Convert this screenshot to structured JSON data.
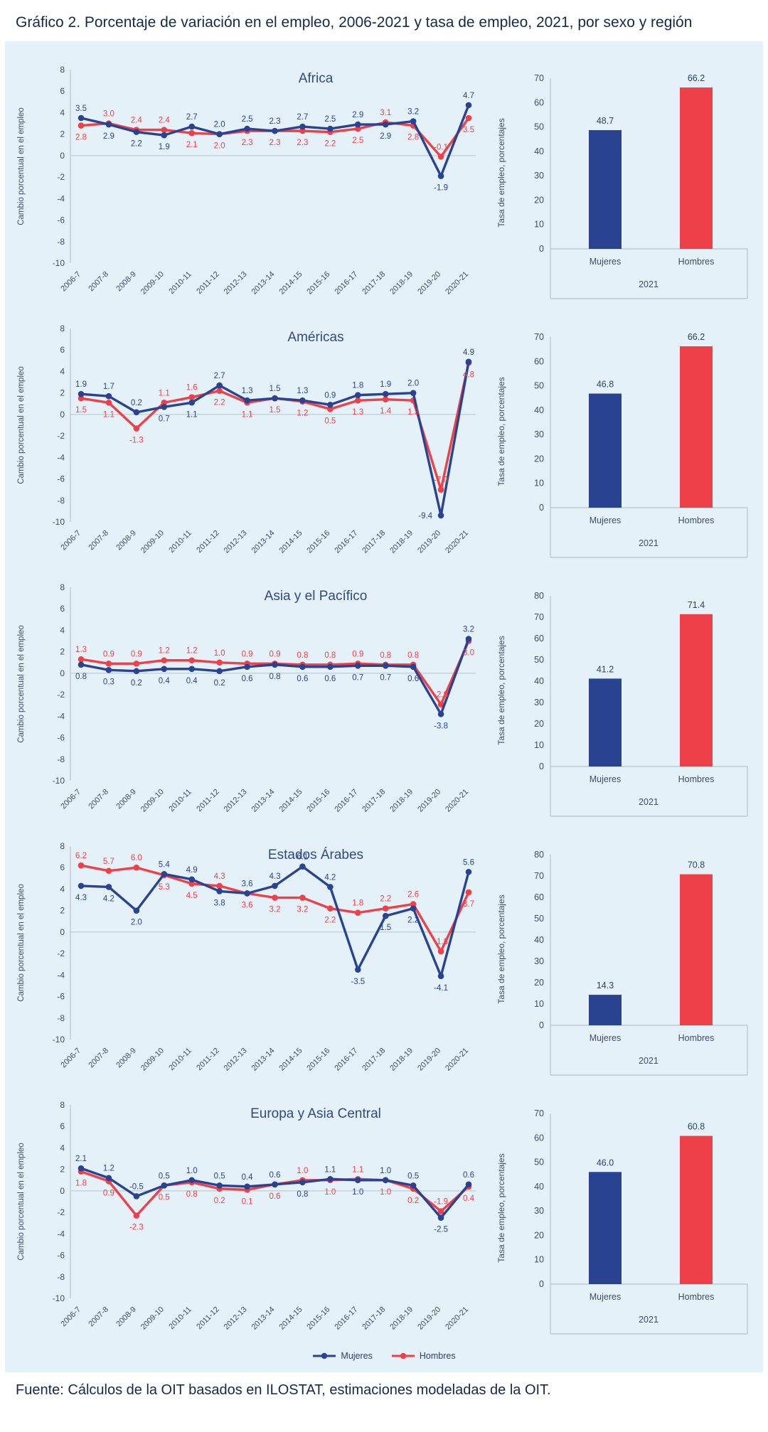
{
  "page": {
    "title": "Gráfico 2. Porcentaje de variación en el empleo, 2006-2021 y tasa de empleo, 2021, por sexo y región",
    "source": "Fuente: Cálculos de la OIT basados en ILOSTAT, estimaciones modeladas de la OIT."
  },
  "colors": {
    "mujeres": "#2a4390",
    "hombres": "#ee4049",
    "panel_background": "#e4f1f8",
    "axis_text": "#3f4d68",
    "grid_line": "#b8c2cc",
    "title_text": "#32497e"
  },
  "legend": {
    "mujeres": "Mujeres",
    "hombres": "Hombres"
  },
  "chart_data": {
    "type": "line+bar multi-panel",
    "line_title_note": "Porcentaje de variación en el empleo, 2006-2021",
    "line_ylabel": "Cambio porcentual en el empleo",
    "line_ylim": [
      -10,
      8
    ],
    "line_yticks": [
      8,
      6,
      4,
      2,
      0,
      -2,
      -4,
      -6,
      -8,
      -10
    ],
    "categories": [
      "2006-7",
      "2007-8",
      "2008-9",
      "2009-10",
      "2010-11",
      "2011-12",
      "2012-13",
      "2013-14",
      "2014-15",
      "2015-16",
      "2016-17",
      "2017-18",
      "2018-19",
      "2019-20",
      "2020-21"
    ],
    "bar_ylabel": "Tasa de empleo, porcentajes",
    "bar_categories": [
      "Mujeres",
      "Hombres"
    ],
    "bar_year": "2021",
    "panels": [
      {
        "region": "Africa",
        "series": [
          {
            "name": "Mujeres",
            "values": [
              3.5,
              2.9,
              2.2,
              1.9,
              2.7,
              2.0,
              2.5,
              2.3,
              2.7,
              2.5,
              2.9,
              2.9,
              3.2,
              -1.9,
              4.7
            ]
          },
          {
            "name": "Hombres",
            "values": [
              2.8,
              3.0,
              2.4,
              2.4,
              2.1,
              2.0,
              2.3,
              2.3,
              2.3,
              2.2,
              2.5,
              3.1,
              2.8,
              -0.1,
              3.5
            ]
          }
        ],
        "bar_values": [
          48.7,
          66.2
        ],
        "bar_ymax": 70
      },
      {
        "region": "Américas",
        "series": [
          {
            "name": "Mujeres",
            "values": [
              1.9,
              1.7,
              0.2,
              0.7,
              1.1,
              2.7,
              1.3,
              1.5,
              1.3,
              0.9,
              1.8,
              1.9,
              2.0,
              -9.4,
              4.9
            ]
          },
          {
            "name": "Hombres",
            "values": [
              1.5,
              1.1,
              -1.3,
              1.1,
              1.6,
              2.2,
              1.1,
              1.5,
              1.2,
              0.5,
              1.3,
              1.4,
              1.3,
              -7.0,
              4.8
            ]
          }
        ],
        "bar_values": [
          46.8,
          66.2
        ],
        "bar_ymax": 70
      },
      {
        "region": "Asia y el Pacífico",
        "series": [
          {
            "name": "Mujeres",
            "values": [
              0.8,
              0.3,
              0.2,
              0.4,
              0.4,
              0.2,
              0.6,
              0.8,
              0.6,
              0.6,
              0.7,
              0.7,
              0.6,
              -3.8,
              3.2
            ]
          },
          {
            "name": "Hombres",
            "values": [
              1.3,
              0.9,
              0.9,
              1.2,
              1.2,
              1.0,
              0.9,
              0.9,
              0.8,
              0.8,
              0.9,
              0.8,
              0.8,
              -2.9,
              3.0
            ]
          }
        ],
        "bar_values": [
          41.2,
          71.4
        ],
        "bar_ymax": 80
      },
      {
        "region": "Estados Árabes",
        "series": [
          {
            "name": "Mujeres",
            "values": [
              4.3,
              4.2,
              2.0,
              5.4,
              4.9,
              3.8,
              3.6,
              4.3,
              6.1,
              4.2,
              -3.5,
              1.5,
              2.2,
              -4.1,
              5.6
            ]
          },
          {
            "name": "Hombres",
            "values": [
              6.2,
              5.7,
              6.0,
              5.3,
              4.5,
              4.3,
              3.6,
              3.2,
              3.2,
              2.2,
              1.8,
              2.2,
              2.6,
              -1.8,
              3.7
            ]
          }
        ],
        "bar_values": [
          14.3,
          70.8
        ],
        "bar_ymax": 80
      },
      {
        "region": "Europa y Asia Central",
        "series": [
          {
            "name": "Mujeres",
            "values": [
              2.1,
              1.2,
              -0.5,
              0.5,
              1.0,
              0.5,
              0.4,
              0.6,
              0.8,
              1.1,
              1.0,
              1.0,
              0.5,
              -2.5,
              0.6
            ]
          },
          {
            "name": "Hombres",
            "values": [
              1.8,
              0.9,
              -2.3,
              0.5,
              0.8,
              0.2,
              0.1,
              0.6,
              1.0,
              1.0,
              1.1,
              1.0,
              0.2,
              -1.9,
              0.4
            ]
          }
        ],
        "bar_values": [
          46.0,
          60.8
        ],
        "bar_ymax": 70
      }
    ]
  }
}
